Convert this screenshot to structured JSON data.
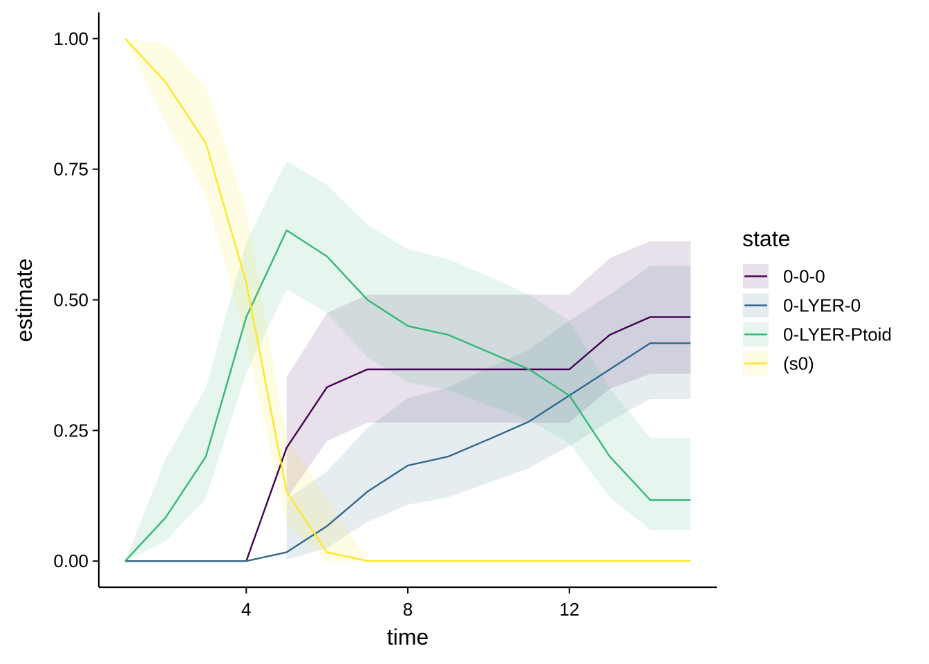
{
  "chart_data": {
    "type": "line",
    "xlabel": "time",
    "ylabel": "estimate",
    "xlim": [
      0.35,
      15.65
    ],
    "ylim": [
      -0.05,
      1.05
    ],
    "x_ticks": [
      4,
      8,
      12
    ],
    "y_ticks": [
      0.0,
      0.25,
      0.5,
      0.75,
      1.0
    ],
    "x_tick_labels": [
      "4",
      "8",
      "12"
    ],
    "y_tick_labels": [
      "0.00",
      "0.25",
      "0.50",
      "0.75",
      "1.00"
    ],
    "grid": false,
    "legend": {
      "title": "state",
      "position": "right"
    },
    "x": [
      1,
      2,
      3,
      4,
      5,
      6,
      7,
      8,
      9,
      10,
      11,
      12,
      13,
      14,
      15
    ],
    "series": [
      {
        "name": "0-0-0",
        "color": "#440154",
        "values": [
          0,
          0,
          0,
          0,
          0.217,
          0.333,
          0.367,
          0.367,
          0.367,
          0.367,
          0.367,
          0.367,
          0.433,
          0.467,
          0.467
        ],
        "lower": [
          null,
          null,
          null,
          null,
          0.12,
          0.23,
          0.265,
          0.265,
          0.265,
          0.265,
          0.265,
          0.265,
          0.33,
          0.358,
          0.358
        ],
        "upper": [
          null,
          null,
          null,
          null,
          0.352,
          0.475,
          0.51,
          0.51,
          0.51,
          0.51,
          0.51,
          0.51,
          0.58,
          0.612,
          0.612
        ]
      },
      {
        "name": "0-LYER-0",
        "color": "#31688E",
        "values": [
          0,
          0,
          0,
          0,
          0.017,
          0.067,
          0.133,
          0.183,
          0.2,
          0.233,
          0.267,
          0.317,
          0.367,
          0.417,
          0.417
        ],
        "lower": [
          null,
          null,
          null,
          null,
          0.003,
          0.025,
          0.075,
          0.108,
          0.122,
          0.15,
          0.178,
          0.22,
          0.268,
          0.31,
          0.31
        ],
        "upper": [
          null,
          null,
          null,
          null,
          0.118,
          0.172,
          0.255,
          0.312,
          0.332,
          0.37,
          0.405,
          0.46,
          0.51,
          0.565,
          0.565
        ]
      },
      {
        "name": "0-LYER-Ptoid",
        "color": "#35B779",
        "values": [
          0,
          0.083,
          0.2,
          0.467,
          0.633,
          0.583,
          0.5,
          0.45,
          0.433,
          0.4,
          0.367,
          0.317,
          0.2,
          0.117,
          0.117
        ],
        "lower": [
          0,
          0.038,
          0.12,
          0.36,
          0.52,
          0.475,
          0.39,
          0.342,
          0.328,
          0.298,
          0.27,
          0.225,
          0.122,
          0.06,
          0.06
        ],
        "upper": [
          0,
          0.195,
          0.332,
          0.61,
          0.765,
          0.72,
          0.643,
          0.597,
          0.578,
          0.545,
          0.51,
          0.46,
          0.33,
          0.236,
          0.236
        ]
      },
      {
        "name": "(s0)",
        "color": "#FDE725",
        "values": [
          1,
          0.917,
          0.8,
          0.533,
          0.133,
          0.017,
          0,
          0,
          0,
          0,
          0,
          0,
          0,
          0,
          0
        ],
        "lower": [
          1,
          0.84,
          0.7,
          0.42,
          0.07,
          0.0,
          0,
          0,
          0,
          0,
          0,
          0,
          0,
          0,
          0
        ],
        "upper": [
          1,
          0.99,
          0.908,
          0.672,
          0.235,
          0.12,
          0,
          0,
          0,
          0,
          0,
          0,
          0,
          0,
          0
        ]
      }
    ]
  }
}
